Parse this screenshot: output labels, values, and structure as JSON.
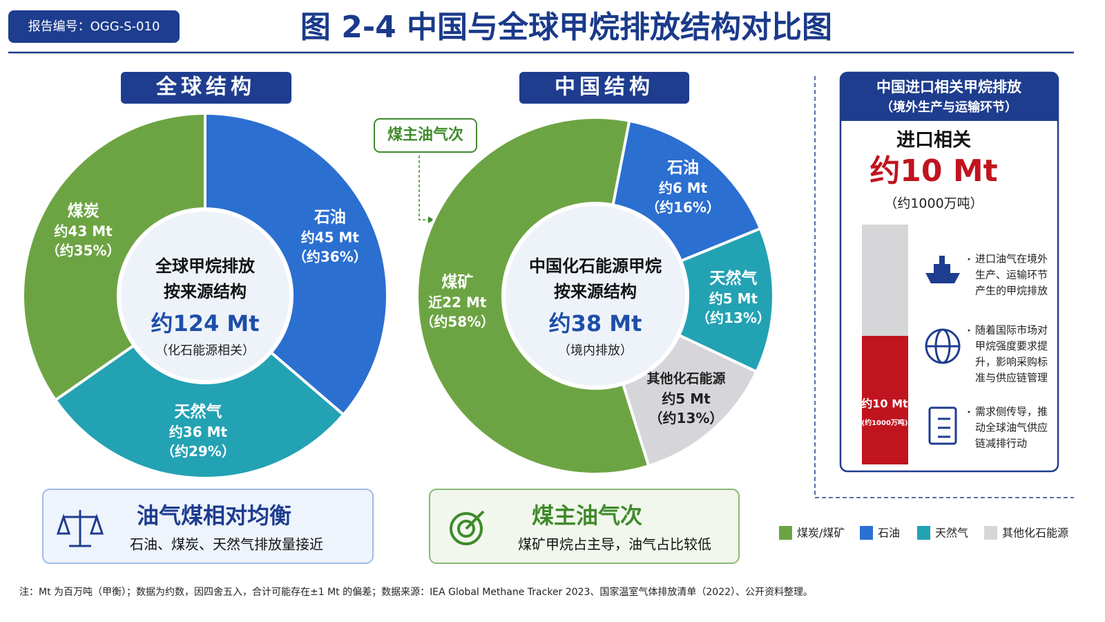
{
  "header": {
    "report_id": "报告编号：OGG-S-010",
    "title": "图 2-4 中国与全球甲烷排放结构对比图"
  },
  "chart_data": [
    {
      "type": "pie",
      "title": "全球结构",
      "center_lines": [
        "全球甲烷排放",
        "按来源结构"
      ],
      "center_total": "约124 Mt",
      "center_note": "（化石能源相关）",
      "categories": [
        "石油",
        "天然气",
        "煤炭"
      ],
      "values": [
        45,
        36,
        43
      ],
      "value_labels": [
        "约45 Mt",
        "约36 Mt",
        "约43 Mt"
      ],
      "share_labels": [
        "（约36%）",
        "（约29%）",
        "（约35%）"
      ],
      "colors": [
        "#2b6fd1",
        "#23a2b3",
        "#6da443"
      ]
    },
    {
      "type": "pie",
      "title": "中国结构",
      "annotation": "煤主油气次",
      "center_lines": [
        "中国化石能源甲烷",
        "按来源结构"
      ],
      "center_total": "约38 Mt",
      "center_note": "（境内排放）",
      "categories": [
        "石油",
        "天然气",
        "其他化石能源",
        "煤矿"
      ],
      "values": [
        6,
        5,
        5,
        22
      ],
      "value_labels": [
        "约6 Mt",
        "约5 Mt",
        "约5 Mt",
        "近22 Mt"
      ],
      "share_labels": [
        "（约16%）",
        "（约13%）",
        "（约13%）",
        "（约58%）"
      ],
      "colors": [
        "#2b6fd1",
        "#23a2b3",
        "#d6d6da",
        "#6da443"
      ]
    }
  ],
  "import_panel": {
    "title_lines": [
      "中国进口相关甲烷排放",
      "（境外生产与运输环节）"
    ],
    "heading": "进口相关",
    "amount": "约10 Mt",
    "amount_note": "（约1000万吨）",
    "bar_label": "约10 Mt",
    "bar_note": "(约1000万吨)",
    "bullets": [
      [
        "进口油气在境外",
        "生产、运输环节",
        "产生的甲烷排放"
      ],
      [
        "随着国际市场对",
        "甲烷强度要求提",
        "升，影响采购标",
        "准与供应链管理"
      ],
      [
        "需求侧传导，推",
        "动全球油气供应",
        "链减排行动"
      ]
    ]
  },
  "summaries": [
    {
      "title": "油气煤相对均衡",
      "text": "石油、煤炭、天然气排放量接近"
    },
    {
      "title": "煤主油气次",
      "text": "煤矿甲烷占主导，油气占比较低"
    }
  ],
  "legend": [
    {
      "label": "煤炭/煤矿",
      "color": "#6da443"
    },
    {
      "label": "石油",
      "color": "#2b6fd1"
    },
    {
      "label": "天然气",
      "color": "#23a2b3"
    },
    {
      "label": "其他化石能源",
      "color": "#d6d6da"
    }
  ],
  "footnote": "注：Mt 为百万吨（甲衡）；数据为约数，因四舍五入，合计可能存在±1 Mt 的偏差；数据来源：IEA Global Methane Tracker 2023、国家温室气体排放清单（2022）、公开资料整理。"
}
